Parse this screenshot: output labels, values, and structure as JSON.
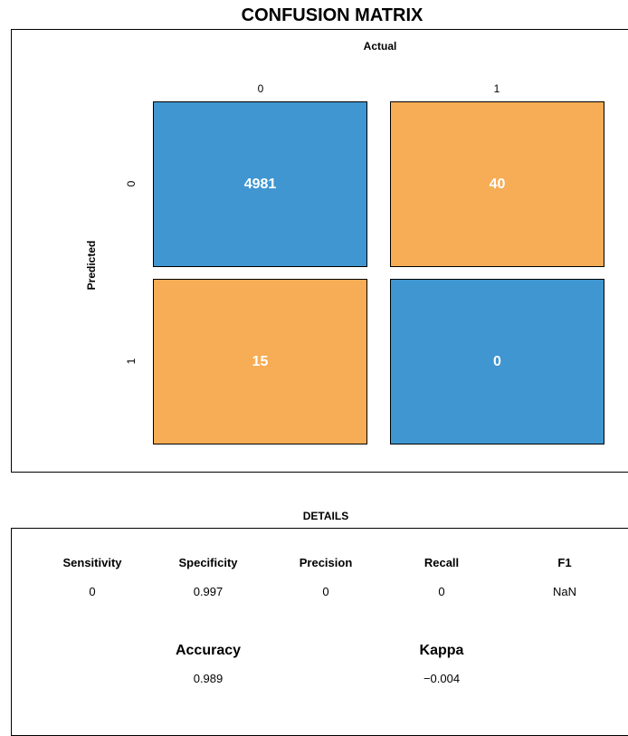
{
  "chart_data": {
    "type": "heatmap",
    "title": "CONFUSION MATRIX",
    "xlabel": "Actual",
    "ylabel": "Predicted",
    "x_categories": [
      "0",
      "1"
    ],
    "y_categories": [
      "0",
      "1"
    ],
    "cells": [
      {
        "predicted": "0",
        "actual": "0",
        "value": 4981,
        "label": "4981",
        "color": "#3f96d0"
      },
      {
        "predicted": "0",
        "actual": "1",
        "value": 40,
        "label": "40",
        "color": "#f6ad55"
      },
      {
        "predicted": "1",
        "actual": "0",
        "value": 15,
        "label": "15",
        "color": "#f6ad55"
      },
      {
        "predicted": "1",
        "actual": "1",
        "value": 0,
        "label": "0",
        "color": "#3f96d0"
      }
    ]
  },
  "details": {
    "title": "DETAILS",
    "metrics": [
      {
        "name": "Sensitivity",
        "value": "0"
      },
      {
        "name": "Specificity",
        "value": "0.997"
      },
      {
        "name": "Precision",
        "value": "0"
      },
      {
        "name": "Recall",
        "value": "0"
      },
      {
        "name": "F1",
        "value": "NaN"
      }
    ],
    "summary": [
      {
        "name": "Accuracy",
        "value": "0.989"
      },
      {
        "name": "Kappa",
        "value": "−0.004"
      }
    ]
  },
  "colors": {
    "correct": "#3f96d0",
    "incorrect": "#f6ad55"
  }
}
